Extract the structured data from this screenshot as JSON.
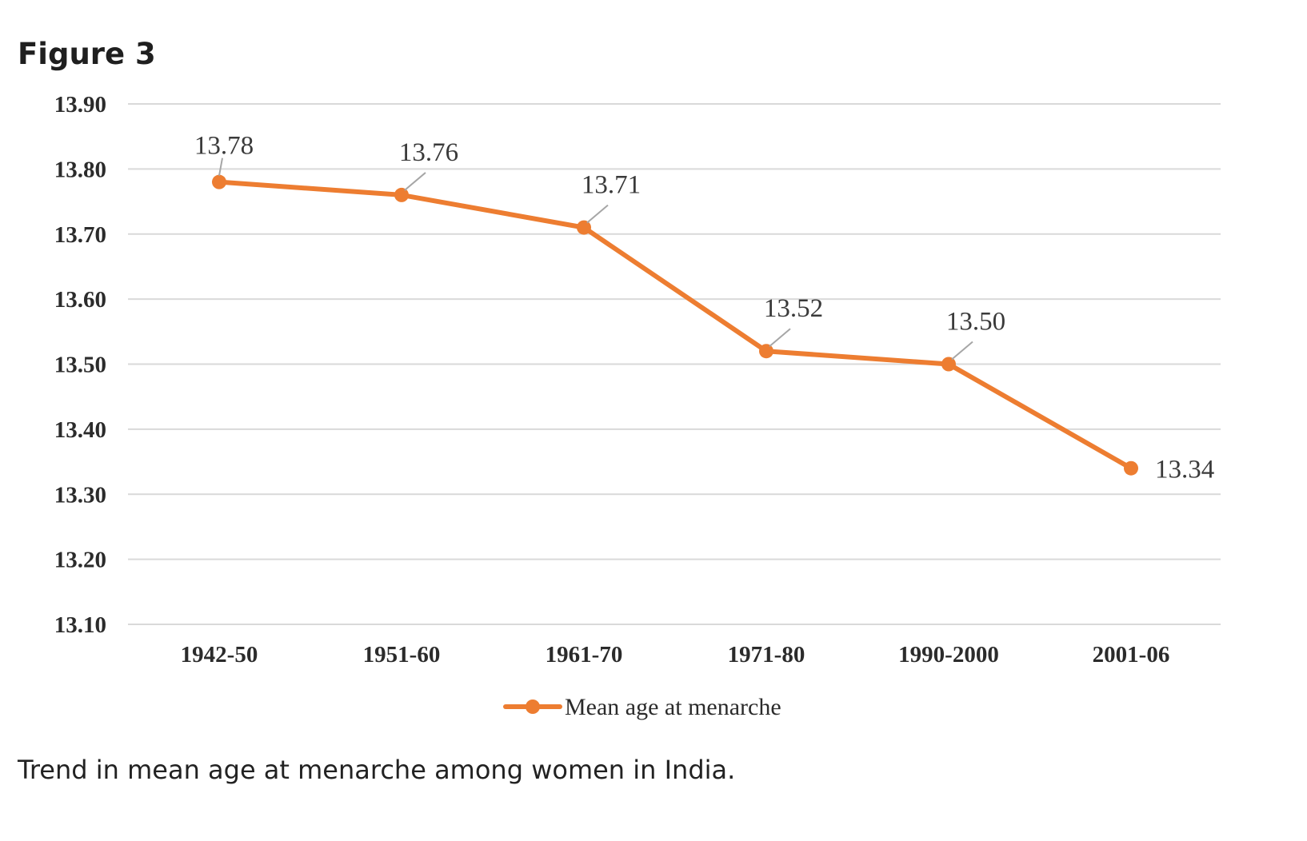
{
  "figure_title": "Figure 3",
  "caption": "Trend in mean age at menarche among women in India.",
  "colors": {
    "series": "#ED7D31",
    "grid": "#D9D9D9",
    "leader": "#A6A6A6"
  },
  "chart_data": {
    "type": "line",
    "title": "",
    "xlabel": "",
    "ylabel": "",
    "categories": [
      "1942-50",
      "1951-60",
      "1961-70",
      "1971-80",
      "1990-2000",
      "2001-06"
    ],
    "ylim": [
      13.1,
      13.9
    ],
    "y_ticks": [
      "13.90",
      "13.80",
      "13.70",
      "13.60",
      "13.50",
      "13.40",
      "13.30",
      "13.20",
      "13.10"
    ],
    "grid": true,
    "legend_position": "bottom",
    "series": [
      {
        "name": "Mean age at menarche",
        "values": [
          13.78,
          13.76,
          13.71,
          13.52,
          13.5,
          13.34
        ],
        "labels": [
          "13.78",
          "13.76",
          "13.71",
          "13.52",
          "13.50",
          "13.34"
        ]
      }
    ]
  }
}
